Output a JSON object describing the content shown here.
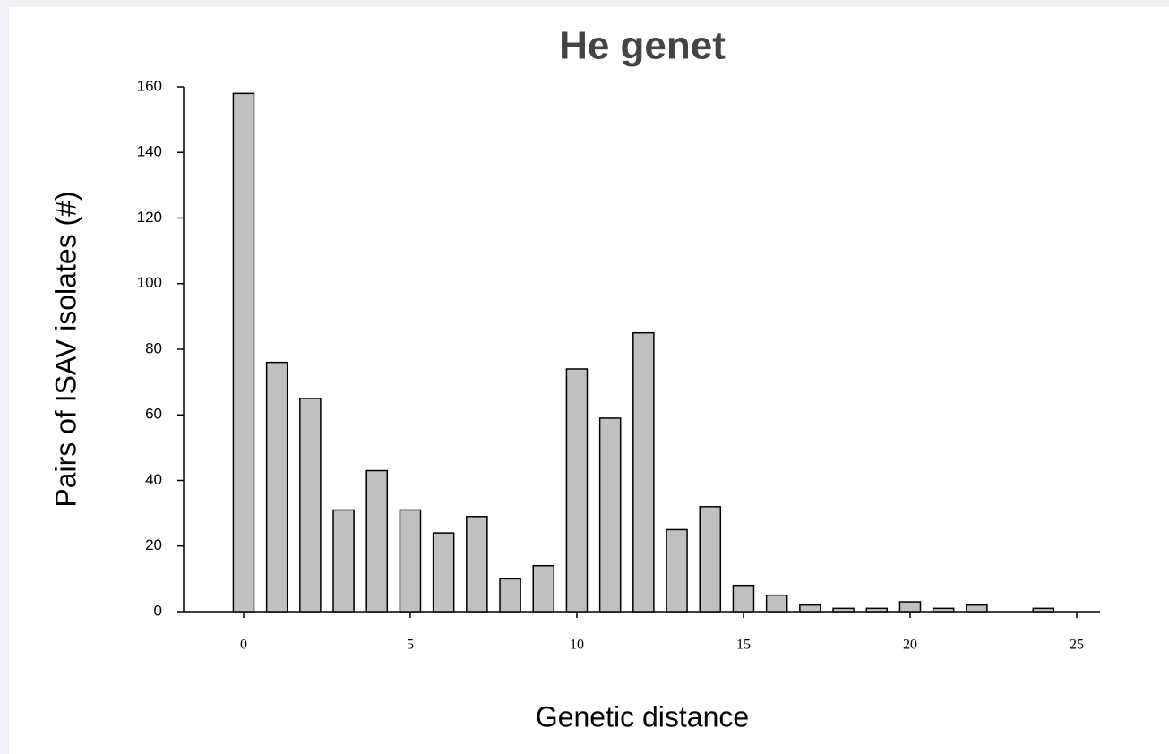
{
  "chart_data": {
    "type": "bar",
    "title": "He genet",
    "xlabel": "Genetic distance",
    "ylabel": "Pairs of ISAV isolates (#)",
    "x": [
      0,
      1,
      2,
      3,
      4,
      5,
      6,
      7,
      8,
      9,
      10,
      11,
      12,
      13,
      14,
      15,
      16,
      17,
      18,
      19,
      20,
      21,
      22,
      24
    ],
    "values": [
      158,
      76,
      65,
      31,
      43,
      31,
      24,
      29,
      10,
      14,
      74,
      59,
      85,
      25,
      32,
      8,
      5,
      2,
      1,
      1,
      3,
      1,
      2,
      1
    ],
    "color": "#c0c0c0",
    "xlim": [
      -1.8,
      25.7
    ],
    "xticks": [
      0,
      5,
      10,
      15,
      20,
      25
    ],
    "ylim": [
      0,
      160
    ],
    "yticks": [
      0,
      20,
      40,
      60,
      80,
      100,
      120,
      140,
      160
    ]
  }
}
